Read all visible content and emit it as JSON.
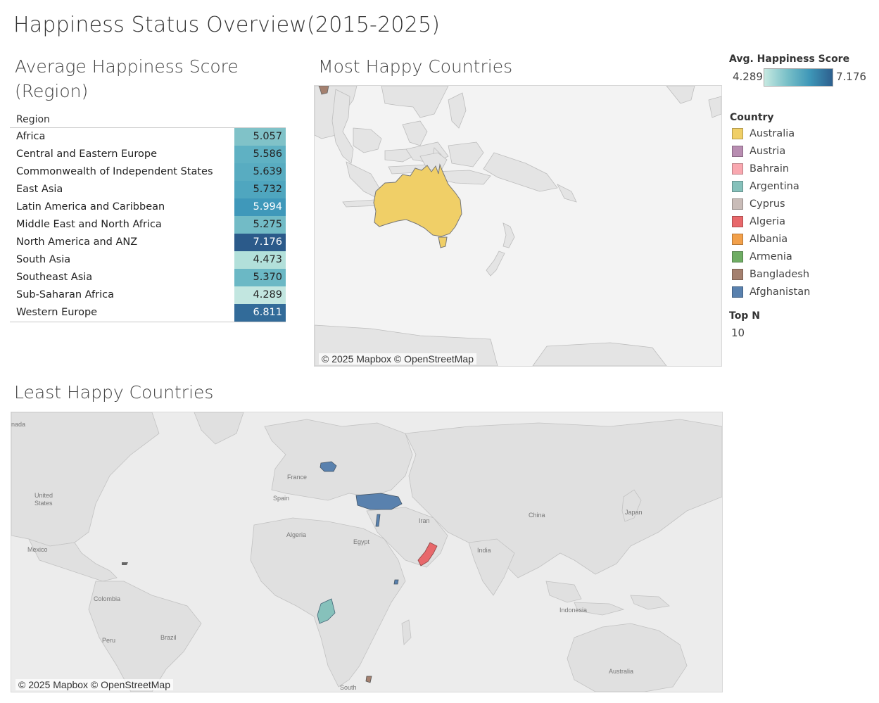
{
  "dashboard": {
    "title": "Happiness Status Overview(2015-2025)"
  },
  "region_table": {
    "title": "Average Happiness Score (Region)",
    "column_header": "Region",
    "rows": [
      {
        "region": "Africa",
        "score": "5.057",
        "color": "#80c2c8",
        "text_color": "#222"
      },
      {
        "region": "Central and Eastern Europe",
        "score": "5.586",
        "color": "#5fb1c3",
        "text_color": "#222"
      },
      {
        "region": "Commonwealth of Independent States",
        "score": "5.639",
        "color": "#58acc1",
        "text_color": "#222"
      },
      {
        "region": "East Asia",
        "score": "5.732",
        "color": "#4fa6bf",
        "text_color": "#222"
      },
      {
        "region": "Latin America and Caribbean",
        "score": "5.994",
        "color": "#3f98ba",
        "text_color": "#ffffff"
      },
      {
        "region": "Middle East and North Africa",
        "score": "5.275",
        "color": "#72bbc6",
        "text_color": "#222"
      },
      {
        "region": "North America and ANZ",
        "score": "7.176",
        "color": "#2b5a8a",
        "text_color": "#ffffff"
      },
      {
        "region": "South Asia",
        "score": "4.473",
        "color": "#b2e0da",
        "text_color": "#222"
      },
      {
        "region": "Southeast Asia",
        "score": "5.370",
        "color": "#6bb8c5",
        "text_color": "#222"
      },
      {
        "region": "Sub-Saharan Africa",
        "score": "4.289",
        "color": "#c2e6e0",
        "text_color": "#222"
      },
      {
        "region": "Western Europe",
        "score": "6.811",
        "color": "#326b99",
        "text_color": "#ffffff"
      }
    ]
  },
  "most_happy": {
    "title": "Most Happy Countries",
    "attribution": "© 2025 Mapbox © OpenStreetMap",
    "highlight_color": "#f0cf67"
  },
  "least_happy": {
    "title": "Least Happy Countries",
    "attribution": "© 2025 Mapbox © OpenStreetMap",
    "map_labels": {
      "canada": "nada",
      "us": "United",
      "us2": "States",
      "mexico": "Mexico",
      "colombia": "Colombia",
      "peru": "Peru",
      "brazil": "Brazil",
      "france": "France",
      "spain": "Spain",
      "algeria": "Algeria",
      "egypt": "Egypt",
      "iran": "Iran",
      "india": "India",
      "china": "China",
      "japan": "Japan",
      "indonesia": "Indonesia",
      "australia": "Australia",
      "south": "South"
    }
  },
  "score_legend": {
    "title": "Avg. Happiness Score",
    "min": "4.289",
    "max": "7.176"
  },
  "country_legend": {
    "title": "Country",
    "items": [
      {
        "label": "Australia",
        "color": "#f0cf67"
      },
      {
        "label": "Austria",
        "color": "#b88db1"
      },
      {
        "label": "Bahrain",
        "color": "#f9a8b0"
      },
      {
        "label": "Argentina",
        "color": "#86c1bb"
      },
      {
        "label": "Cyprus",
        "color": "#c9bcb8"
      },
      {
        "label": "Algeria",
        "color": "#e8686b"
      },
      {
        "label": "Albania",
        "color": "#f2a04a"
      },
      {
        "label": "Armenia",
        "color": "#6fad64"
      },
      {
        "label": "Bangladesh",
        "color": "#a4806f"
      },
      {
        "label": "Afghanistan",
        "color": "#5981ae"
      }
    ]
  },
  "top_n": {
    "title": "Top N",
    "value": "10"
  }
}
